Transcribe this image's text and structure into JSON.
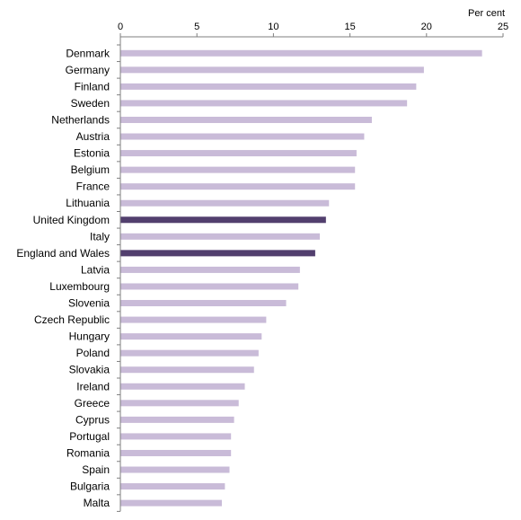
{
  "chart_data": {
    "type": "bar",
    "orientation": "horizontal",
    "unit_label": "Per cent",
    "xlim": [
      0,
      25
    ],
    "ticks": [
      0,
      5,
      10,
      15,
      20,
      25
    ],
    "grid": false,
    "categories": [
      "Denmark",
      "Germany",
      "Finland",
      "Sweden",
      "Netherlands",
      "Austria",
      "Estonia",
      "Belgium",
      "France",
      "Lithuania",
      "United Kingdom",
      "Italy",
      "England and Wales",
      "Latvia",
      "Luxembourg",
      "Slovenia",
      "Czech Republic",
      "Hungary",
      "Poland",
      "Slovakia",
      "Ireland",
      "Greece",
      "Cyprus",
      "Portugal",
      "Romania",
      "Spain",
      "Bulgaria",
      "Malta"
    ],
    "values": [
      23.6,
      19.8,
      19.3,
      18.7,
      16.4,
      15.9,
      15.4,
      15.3,
      15.3,
      13.6,
      13.4,
      13.0,
      12.7,
      11.7,
      11.6,
      10.8,
      9.5,
      9.2,
      9.0,
      8.7,
      8.1,
      7.7,
      7.4,
      7.2,
      7.2,
      7.1,
      6.8,
      6.6
    ],
    "highlighted": [
      "United Kingdom",
      "England and Wales"
    ],
    "colors": {
      "bar": "#c9bbd8",
      "highlight": "#523f6e",
      "axis": "#7f7f7f"
    }
  }
}
